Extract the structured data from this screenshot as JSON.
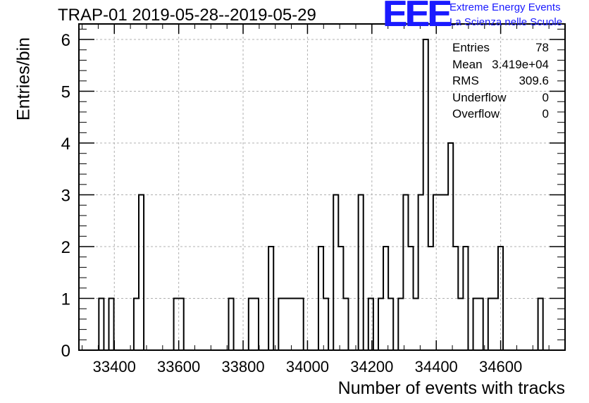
{
  "chart_data": {
    "type": "histogram",
    "title": "TRAP-01 2019-05-28--2019-05-29",
    "xlabel": "Number of events with tracks",
    "ylabel": "Entries/bin",
    "xlim": [
      33290,
      34800
    ],
    "ylim": [
      0,
      6.3
    ],
    "bin_width": 15.5,
    "xticks": [
      33400,
      33600,
      33800,
      34000,
      34200,
      34400,
      34600
    ],
    "yticks": [
      0,
      1,
      2,
      3,
      4,
      5,
      6
    ],
    "grid": true,
    "bins": [
      {
        "x0": 33352,
        "y": 1
      },
      {
        "x0": 33367.5,
        "y": 0
      },
      {
        "x0": 33383,
        "y": 1
      },
      {
        "x0": 33398.5,
        "y": 0
      },
      {
        "x0": 33414,
        "y": 0
      },
      {
        "x0": 33429.5,
        "y": 0
      },
      {
        "x0": 33445,
        "y": 0
      },
      {
        "x0": 33460.5,
        "y": 1
      },
      {
        "x0": 33476,
        "y": 3
      },
      {
        "x0": 33491.5,
        "y": 0
      },
      {
        "x0": 33507,
        "y": 0
      },
      {
        "x0": 33522.5,
        "y": 0
      },
      {
        "x0": 33538,
        "y": 0
      },
      {
        "x0": 33553.5,
        "y": 0
      },
      {
        "x0": 33569,
        "y": 0
      },
      {
        "x0": 33584.5,
        "y": 1
      },
      {
        "x0": 33600,
        "y": 1
      },
      {
        "x0": 33615.5,
        "y": 0
      },
      {
        "x0": 33631,
        "y": 0
      },
      {
        "x0": 33646.5,
        "y": 0
      },
      {
        "x0": 33662,
        "y": 0
      },
      {
        "x0": 33677.5,
        "y": 0
      },
      {
        "x0": 33693,
        "y": 0
      },
      {
        "x0": 33708.5,
        "y": 0
      },
      {
        "x0": 33724,
        "y": 0
      },
      {
        "x0": 33739.5,
        "y": 0
      },
      {
        "x0": 33755,
        "y": 1
      },
      {
        "x0": 33770.5,
        "y": 0
      },
      {
        "x0": 33786,
        "y": 0
      },
      {
        "x0": 33801.5,
        "y": 0
      },
      {
        "x0": 33817,
        "y": 1
      },
      {
        "x0": 33832.5,
        "y": 1
      },
      {
        "x0": 33848,
        "y": 0
      },
      {
        "x0": 33863.5,
        "y": 0
      },
      {
        "x0": 33879,
        "y": 2
      },
      {
        "x0": 33894.5,
        "y": 0
      },
      {
        "x0": 33910,
        "y": 1
      },
      {
        "x0": 33925.5,
        "y": 1
      },
      {
        "x0": 33941,
        "y": 1
      },
      {
        "x0": 33956.5,
        "y": 1
      },
      {
        "x0": 33972,
        "y": 1
      },
      {
        "x0": 33987.5,
        "y": 0
      },
      {
        "x0": 34003,
        "y": 0
      },
      {
        "x0": 34018.5,
        "y": 0
      },
      {
        "x0": 34034,
        "y": 2
      },
      {
        "x0": 34049.5,
        "y": 1
      },
      {
        "x0": 34065,
        "y": 0
      },
      {
        "x0": 34080.5,
        "y": 3
      },
      {
        "x0": 34096,
        "y": 2
      },
      {
        "x0": 34111.5,
        "y": 1
      },
      {
        "x0": 34127,
        "y": 0
      },
      {
        "x0": 34142.5,
        "y": 0
      },
      {
        "x0": 34158,
        "y": 3
      },
      {
        "x0": 34173.5,
        "y": 0
      },
      {
        "x0": 34189,
        "y": 1
      },
      {
        "x0": 34204.5,
        "y": 0
      },
      {
        "x0": 34220,
        "y": 1
      },
      {
        "x0": 34235.5,
        "y": 2
      },
      {
        "x0": 34251,
        "y": 1
      },
      {
        "x0": 34266.5,
        "y": 0
      },
      {
        "x0": 34282,
        "y": 1
      },
      {
        "x0": 34297.5,
        "y": 3
      },
      {
        "x0": 34313,
        "y": 2
      },
      {
        "x0": 34328.5,
        "y": 1
      },
      {
        "x0": 34344,
        "y": 3
      },
      {
        "x0": 34359.5,
        "y": 6
      },
      {
        "x0": 34375,
        "y": 2
      },
      {
        "x0": 34390.5,
        "y": 3
      },
      {
        "x0": 34406,
        "y": 3
      },
      {
        "x0": 34421.5,
        "y": 3
      },
      {
        "x0": 34437,
        "y": 4
      },
      {
        "x0": 34452.5,
        "y": 2
      },
      {
        "x0": 34468,
        "y": 1
      },
      {
        "x0": 34483.5,
        "y": 2
      },
      {
        "x0": 34499,
        "y": 0
      },
      {
        "x0": 34514.5,
        "y": 1
      },
      {
        "x0": 34530,
        "y": 1
      },
      {
        "x0": 34545.5,
        "y": 0
      },
      {
        "x0": 34561,
        "y": 1
      },
      {
        "x0": 34576.5,
        "y": 1
      },
      {
        "x0": 34592,
        "y": 2
      },
      {
        "x0": 34607.5,
        "y": 0
      },
      {
        "x0": 34623,
        "y": 0
      },
      {
        "x0": 34638.5,
        "y": 0
      },
      {
        "x0": 34654,
        "y": 0
      },
      {
        "x0": 34669.5,
        "y": 0
      },
      {
        "x0": 34685,
        "y": 0
      },
      {
        "x0": 34700.5,
        "y": 0
      },
      {
        "x0": 34716,
        "y": 1
      }
    ]
  },
  "stats": {
    "entries_label": "Entries",
    "entries_value": "78",
    "mean_label": "Mean",
    "mean_value": "3.419e+04",
    "rms_label": "RMS",
    "rms_value": "309.6",
    "underflow_label": "Underflow",
    "underflow_value": "0",
    "overflow_label": "Overflow",
    "overflow_value": "0"
  },
  "logo": {
    "mark": "EEE",
    "line1": "Extreme Energy Events",
    "line2": "La Scienza nelle Scuole"
  },
  "colors": {
    "line": "#000000",
    "grid": "#b0b0b0",
    "logo": "#1a1aff"
  }
}
